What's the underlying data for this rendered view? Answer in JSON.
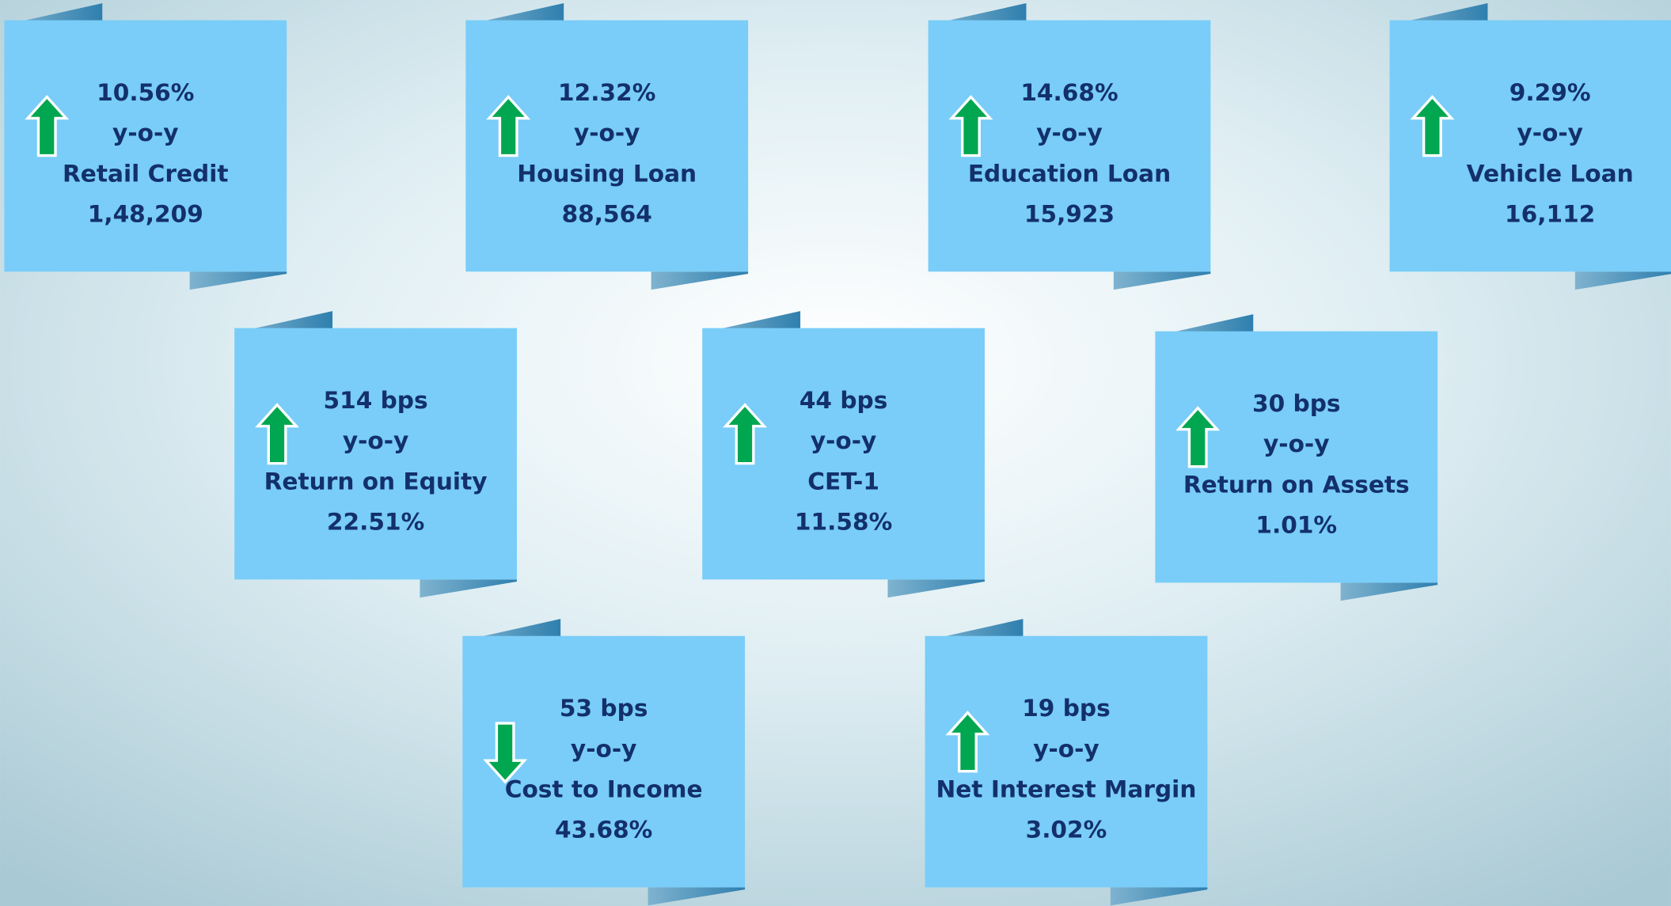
{
  "cards": [
    {
      "change": "10.56%",
      "period": "y-o-y",
      "label": "Retail Credit",
      "value": "1,48,209",
      "direction": "up"
    },
    {
      "change": "12.32%",
      "period": "y-o-y",
      "label": "Housing Loan",
      "value": "88,564",
      "direction": "up"
    },
    {
      "change": "14.68%",
      "period": "y-o-y",
      "label": "Education Loan",
      "value": "15,923",
      "direction": "up"
    },
    {
      "change": "9.29%",
      "period": "y-o-y",
      "label": "Vehicle Loan",
      "value": "16,112",
      "direction": "up"
    },
    {
      "change": "514 bps",
      "period": "y-o-y",
      "label": "Return on Equity",
      "value": "22.51%",
      "direction": "up"
    },
    {
      "change": "44 bps",
      "period": "y-o-y",
      "label": "CET-1",
      "value": "11.58%",
      "direction": "up"
    },
    {
      "change": "30 bps",
      "period": "y-o-y",
      "label": "Return on Assets",
      "value": "1.01%",
      "direction": "up"
    },
    {
      "change": "53 bps",
      "period": "y-o-y",
      "label": "Cost to Income",
      "value": "43.68%",
      "direction": "down"
    },
    {
      "change": "19 bps",
      "period": "y-o-y",
      "label": "Net Interest Margin",
      "value": "3.02%",
      "direction": "up"
    }
  ]
}
